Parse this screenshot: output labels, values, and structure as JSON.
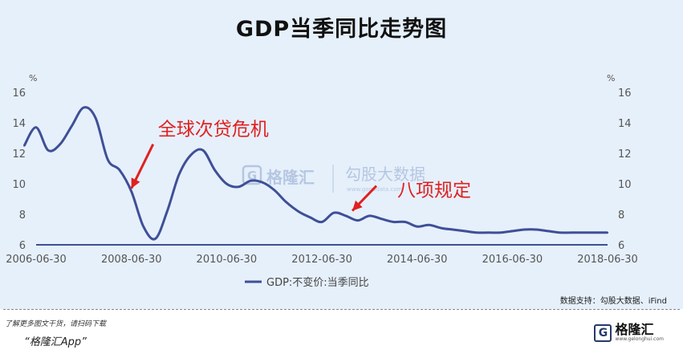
{
  "title": "GDP当季同比走势图",
  "source": "数据支持：勾股大数据、iFind",
  "watermark": {
    "brand": "格隆汇",
    "text": "勾股大数据",
    "url": "www.gogudata.com"
  },
  "footer": {
    "note": "了解更多图文干货，请扫码下载",
    "app": "“格隆汇App”",
    "brand_name": "格隆汇",
    "brand_url": "www.gelonghui.com",
    "brand_mark": "G"
  },
  "chart_data": {
    "type": "line",
    "title": "GDP当季同比走势图",
    "ylabel": "%",
    "ylabel_right": "%",
    "ylim": [
      6,
      16
    ],
    "yticks": [
      6,
      8,
      10,
      12,
      14,
      16
    ],
    "xlim": [
      "2006-06-30",
      "2018-06-30"
    ],
    "xticks": [
      "2006-06-30",
      "2008-06-30",
      "2010-06-30",
      "2012-06-30",
      "2014-06-30",
      "2016-06-30",
      "2018-06-30"
    ],
    "grid": false,
    "legend_position": "bottom",
    "color": "#3f4f97",
    "series": [
      {
        "name": "GDP:不变价:当季同比",
        "x": [
          "2006-03-31",
          "2006-06-30",
          "2006-09-30",
          "2006-12-31",
          "2007-03-31",
          "2007-06-30",
          "2007-09-30",
          "2007-12-31",
          "2008-03-31",
          "2008-06-30",
          "2008-09-30",
          "2008-12-31",
          "2009-03-31",
          "2009-06-30",
          "2009-09-30",
          "2009-12-31",
          "2010-03-31",
          "2010-06-30",
          "2010-09-30",
          "2010-12-31",
          "2011-03-31",
          "2011-06-30",
          "2011-09-30",
          "2011-12-31",
          "2012-03-31",
          "2012-06-30",
          "2012-09-30",
          "2012-12-31",
          "2013-03-31",
          "2013-06-30",
          "2013-09-30",
          "2013-12-31",
          "2014-03-31",
          "2014-06-30",
          "2014-09-30",
          "2014-12-31",
          "2015-03-31",
          "2015-06-30",
          "2015-09-30",
          "2015-12-31",
          "2016-03-31",
          "2016-06-30",
          "2016-09-30",
          "2016-12-31",
          "2017-03-31",
          "2017-06-30",
          "2017-09-30",
          "2017-12-31",
          "2018-03-31",
          "2018-06-30"
        ],
        "values": [
          12.5,
          13.7,
          12.2,
          12.6,
          13.8,
          15.0,
          14.3,
          11.6,
          10.9,
          9.5,
          7.2,
          6.4,
          8.2,
          10.6,
          11.9,
          12.2,
          10.9,
          10.0,
          9.8,
          10.2,
          10.1,
          9.6,
          8.8,
          8.2,
          7.8,
          7.5,
          8.1,
          7.9,
          7.6,
          7.9,
          7.7,
          7.5,
          7.5,
          7.2,
          7.3,
          7.1,
          7.0,
          6.9,
          6.8,
          6.8,
          6.8,
          6.9,
          7.0,
          7.0,
          6.9,
          6.8,
          6.8,
          6.8,
          6.8,
          6.8
        ]
      }
    ],
    "annotations": [
      {
        "text": "全球次贷危机",
        "target_x": "2008-06-30",
        "target_y": 9.7
      },
      {
        "text": "八项规定",
        "target_x": "2012-12-31",
        "target_y": 7.6
      }
    ]
  }
}
